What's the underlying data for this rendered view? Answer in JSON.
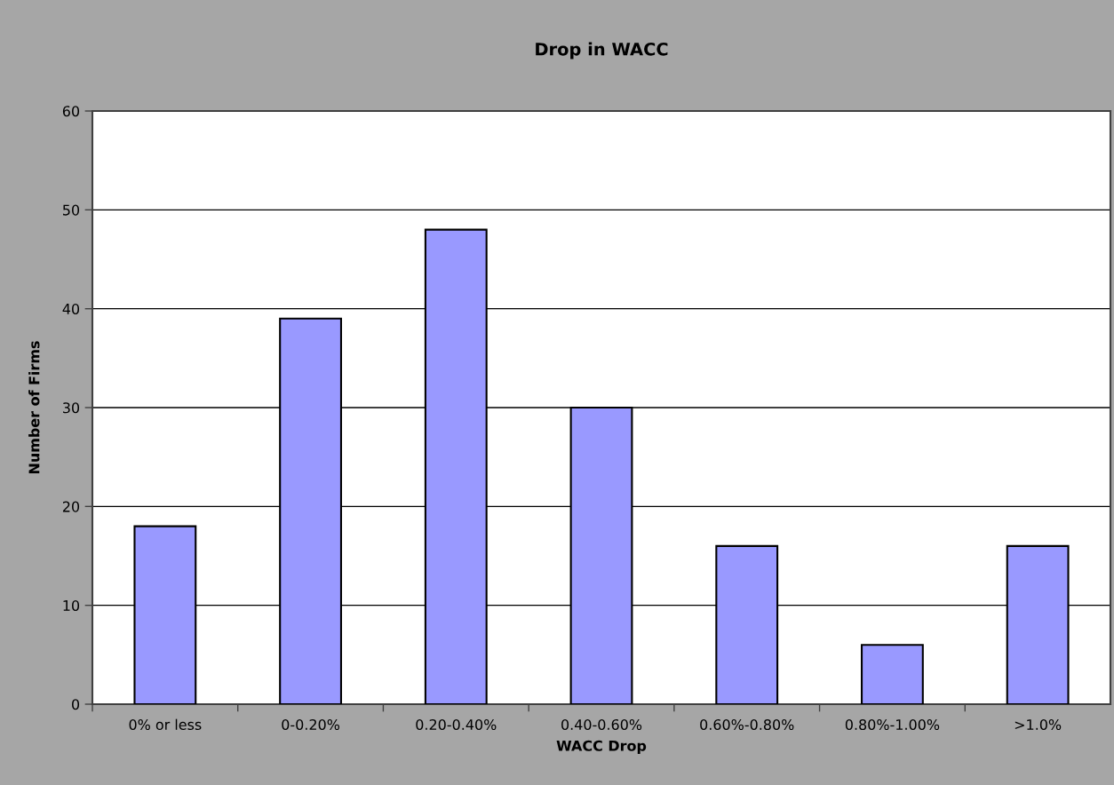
{
  "chart_data": {
    "type": "bar",
    "title": "Drop in WACC",
    "xlabel": "WACC Drop",
    "ylabel": "Number of Firms",
    "categories": [
      "0% or less",
      "0-0.20%",
      "0.20-0.40%",
      "0.40-0.60%",
      "0.60%-0.80%",
      "0.80%-1.00%",
      ">1.0%"
    ],
    "values": [
      18,
      39,
      48,
      30,
      16,
      6,
      16
    ],
    "color": "#9999ff",
    "ylim": [
      0,
      60
    ],
    "yticks": [
      0,
      10,
      20,
      30,
      40,
      50,
      60
    ],
    "grid": "y"
  }
}
